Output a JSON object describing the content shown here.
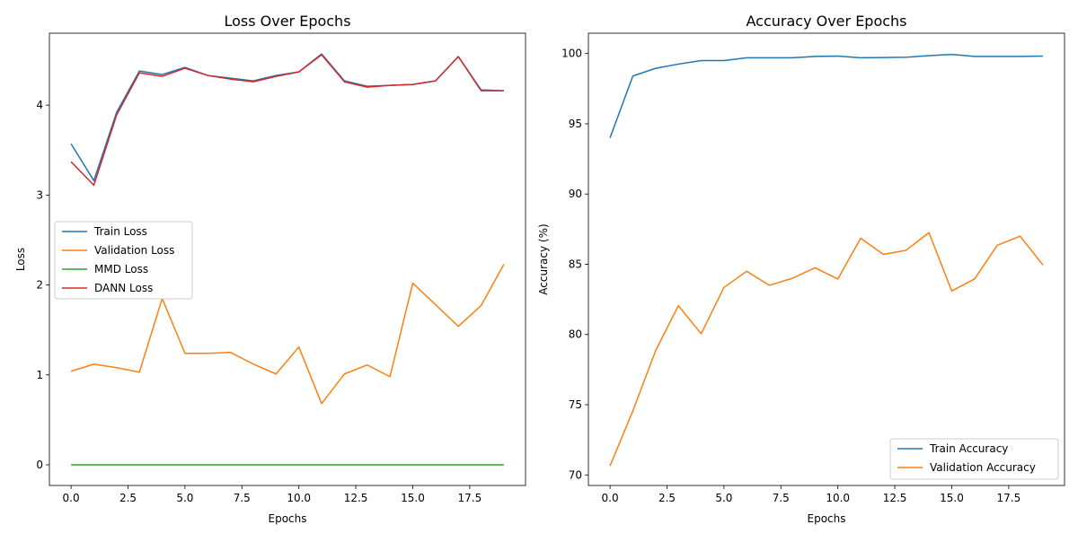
{
  "chart_data": [
    {
      "type": "line",
      "title": "Loss Over Epochs",
      "xlabel": "Epochs",
      "ylabel": "Loss",
      "xlim": [
        -0.95,
        19.95
      ],
      "ylim": [
        -0.23,
        4.8
      ],
      "xticks": [
        0.0,
        2.5,
        5.0,
        7.5,
        10.0,
        12.5,
        15.0,
        17.5
      ],
      "xtick_labels": [
        "0.0",
        "2.5",
        "5.0",
        "7.5",
        "10.0",
        "12.5",
        "15.0",
        "17.5"
      ],
      "yticks": [
        0,
        1,
        2,
        3,
        4
      ],
      "ytick_labels": [
        "0",
        "1",
        "2",
        "3",
        "4"
      ],
      "grid": false,
      "legend_position": "center-left",
      "x": [
        0,
        1,
        2,
        3,
        4,
        5,
        6,
        7,
        8,
        9,
        10,
        11,
        12,
        13,
        14,
        15,
        16,
        17,
        18,
        19
      ],
      "series": [
        {
          "name": "Train Loss",
          "color": "#1f77b4",
          "values": [
            3.57,
            3.16,
            3.92,
            4.38,
            4.34,
            4.42,
            4.33,
            4.3,
            4.27,
            4.33,
            4.37,
            4.57,
            4.27,
            4.21,
            4.22,
            4.23,
            4.27,
            4.54,
            4.17,
            4.16
          ]
        },
        {
          "name": "Validation Loss",
          "color": "#ff7f0e",
          "values": [
            1.04,
            1.12,
            1.08,
            1.03,
            1.85,
            1.24,
            1.24,
            1.25,
            1.12,
            1.01,
            1.31,
            0.68,
            1.01,
            1.11,
            0.98,
            2.02,
            1.78,
            1.54,
            1.77,
            2.23
          ]
        },
        {
          "name": "MMD Loss",
          "color": "#2ca02c",
          "values": [
            0,
            0,
            0,
            0,
            0,
            0,
            0,
            0,
            0,
            0,
            0,
            0,
            0,
            0,
            0,
            0,
            0,
            0,
            0,
            0
          ]
        },
        {
          "name": "DANN Loss",
          "color": "#d62728",
          "values": [
            3.37,
            3.11,
            3.89,
            4.36,
            4.32,
            4.41,
            4.33,
            4.29,
            4.26,
            4.32,
            4.37,
            4.56,
            4.26,
            4.2,
            4.22,
            4.23,
            4.27,
            4.54,
            4.16,
            4.16
          ]
        }
      ]
    },
    {
      "type": "line",
      "title": "Accuracy Over Epochs",
      "xlabel": "Epochs",
      "ylabel": "Accuracy (%)",
      "xlim": [
        -0.95,
        19.95
      ],
      "ylim": [
        69.25,
        101.45
      ],
      "xticks": [
        0.0,
        2.5,
        5.0,
        7.5,
        10.0,
        12.5,
        15.0,
        17.5
      ],
      "xtick_labels": [
        "0.0",
        "2.5",
        "5.0",
        "7.5",
        "10.0",
        "12.5",
        "15.0",
        "17.5"
      ],
      "yticks": [
        70,
        75,
        80,
        85,
        90,
        95,
        100
      ],
      "ytick_labels": [
        "70",
        "75",
        "80",
        "85",
        "90",
        "95",
        "100"
      ],
      "grid": false,
      "legend_position": "lower-right",
      "x": [
        0,
        1,
        2,
        3,
        4,
        5,
        6,
        7,
        8,
        9,
        10,
        11,
        12,
        13,
        14,
        15,
        16,
        17,
        18,
        19
      ],
      "series": [
        {
          "name": "Train Accuracy",
          "color": "#1f77b4",
          "values": [
            94.0,
            98.4,
            98.95,
            99.25,
            99.5,
            99.5,
            99.7,
            99.7,
            99.7,
            99.8,
            99.82,
            99.7,
            99.72,
            99.74,
            99.85,
            99.94,
            99.8,
            99.8,
            99.8,
            99.82
          ]
        },
        {
          "name": "Validation Accuracy",
          "color": "#ff7f0e",
          "values": [
            70.65,
            74.55,
            78.85,
            82.05,
            80.05,
            83.35,
            84.5,
            83.5,
            84.0,
            84.75,
            83.95,
            86.85,
            85.7,
            86.0,
            87.25,
            83.1,
            83.95,
            86.35,
            87.0,
            84.95
          ]
        }
      ]
    }
  ]
}
